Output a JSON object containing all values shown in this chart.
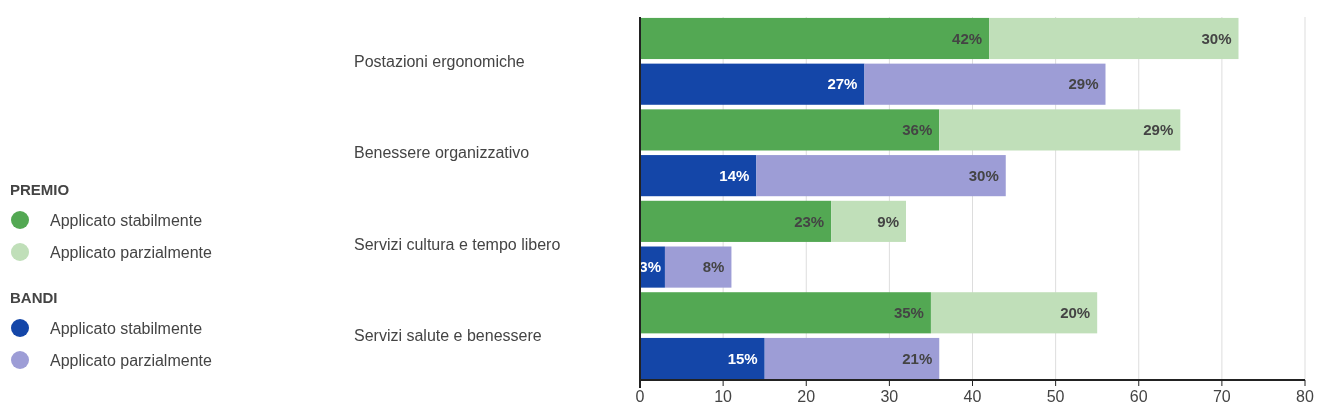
{
  "chart_data": {
    "type": "bar",
    "orientation": "horizontal",
    "stacked": true,
    "categories": [
      "Postazioni ergonomiche",
      null,
      "Benessere organizzativo",
      null,
      "Servizi cultura e tempo libero",
      null,
      "Servizi salute e benessere",
      null
    ],
    "series": [
      {
        "name": "Applicato stabilmente",
        "color": "#53a853",
        "values": [
          42,
          null,
          36,
          null,
          23,
          null,
          35,
          null
        ],
        "value_labels": [
          "42%",
          null,
          "36%",
          null,
          "23%",
          null,
          "35%",
          null
        ]
      },
      {
        "name": "Applicato parzialmente",
        "color": "#c0dfb9",
        "values": [
          30,
          null,
          29,
          null,
          9,
          null,
          20,
          null
        ],
        "value_labels": [
          "30%",
          null,
          "29%",
          null,
          "9%",
          null,
          "20%",
          null
        ]
      },
      {
        "name": "Applicato stabilmente",
        "color": "#1446a8",
        "values": [
          null,
          27,
          null,
          14,
          null,
          3,
          null,
          15
        ],
        "value_labels": [
          null,
          "27%",
          null,
          "14%",
          null,
          "3%",
          null,
          "15%"
        ]
      },
      {
        "name": "Applicato parzialmente",
        "color": "#9d9dd6",
        "values": [
          null,
          29,
          null,
          30,
          null,
          8,
          null,
          21
        ],
        "value_labels": [
          null,
          "29%",
          null,
          "30%",
          null,
          "8%",
          null,
          "21%"
        ]
      }
    ],
    "annotations": [
      "PREMIO",
      "BANDI"
    ],
    "xlim": [
      0,
      80
    ],
    "xticks": [
      0,
      10,
      20,
      30,
      40,
      50,
      60,
      70,
      80
    ],
    "grid": "x",
    "legend": "left"
  }
}
